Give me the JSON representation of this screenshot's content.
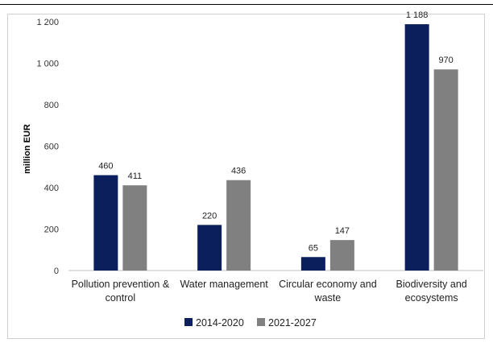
{
  "chart_data": {
    "type": "bar",
    "title": "",
    "xlabel": "",
    "ylabel": "million EUR",
    "ylim": [
      0,
      1200
    ],
    "yticks": [
      "0",
      "200",
      "400",
      "600",
      "800",
      "1 000",
      "1 200"
    ],
    "ytick_values": [
      0,
      200,
      400,
      600,
      800,
      1000,
      1200
    ],
    "categories": [
      [
        "Pollution prevention &",
        "control"
      ],
      [
        "Water management"
      ],
      [
        "Circular economy and",
        "waste"
      ],
      [
        "Biodiversity and",
        "ecosystems"
      ]
    ],
    "series": [
      {
        "name": "2014-2020",
        "color": "#0b1f5c",
        "values": [
          460,
          220,
          65,
          1188
        ],
        "labels": [
          "460",
          "220",
          "65",
          "1 188"
        ]
      },
      {
        "name": "2021-2027",
        "color": "#808080",
        "values": [
          411,
          436,
          147,
          970
        ],
        "labels": [
          "411",
          "436",
          "147",
          "970"
        ]
      }
    ],
    "grid": false,
    "legend_position": "bottom"
  }
}
